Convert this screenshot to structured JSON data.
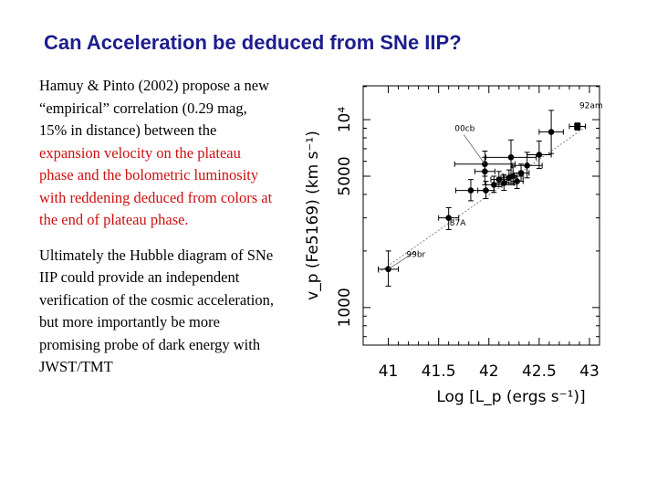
{
  "slide": {
    "title": "Can Acceleration be deduced from SNe IIP?",
    "para1_black": "Hamuy & Pinto (2002) propose a new “empirical” correlation (0.29 mag, 15% in distance) between the",
    "para1_red": "expansion velocity on the plateau phase and the bolometric luminosity with reddening deduced from colors at the end of plateau phase.",
    "para2": "Ultimately the Hubble diagram of SNe IIP could provide an independent verification of the cosmic acceleration, but more importantly be more promising probe of dark energy with JWST/TMT"
  },
  "chart_data": {
    "type": "scatter",
    "title": "",
    "xlabel": "Log [L_p (ergs s⁻¹)]",
    "ylabel": "v_p (Fe5169) (km s⁻¹)",
    "xlim": [
      40.75,
      43.1
    ],
    "ylim_log": [
      2.8,
      4.18
    ],
    "xticks": [
      "41",
      "41.5",
      "42",
      "42.5",
      "43"
    ],
    "yticks": [
      "1000",
      "5000",
      "10⁴"
    ],
    "points": [
      {
        "x": 42.88,
        "y": 9200,
        "xerr": 0.08,
        "yerr_lo": 400,
        "yerr_hi": 400
      },
      {
        "x": 42.62,
        "y": 8600,
        "xerr": 0.12,
        "yerr_lo": 2000,
        "yerr_hi": 2600
      },
      {
        "x": 42.5,
        "y": 6500,
        "xerr": 0.12,
        "yerr_lo": 1000,
        "yerr_hi": 1200
      },
      {
        "x": 42.22,
        "y": 6300,
        "xerr": 0.25,
        "yerr_lo": 1200,
        "yerr_hi": 1500
      },
      {
        "x": 41.96,
        "y": 5800,
        "xerr": 0.3,
        "yerr_lo": 800,
        "yerr_hi": 1000
      },
      {
        "x": 42.38,
        "y": 5700,
        "xerr": 0.15,
        "yerr_lo": 800,
        "yerr_hi": 1000
      },
      {
        "x": 41.96,
        "y": 5300,
        "xerr": 0.1,
        "yerr_lo": 800,
        "yerr_hi": 1000
      },
      {
        "x": 42.32,
        "y": 5200,
        "xerr": 0.08,
        "yerr_lo": 500,
        "yerr_hi": 600
      },
      {
        "x": 42.24,
        "y": 5000,
        "xerr": 0.1,
        "yerr_lo": 500,
        "yerr_hi": 600
      },
      {
        "x": 42.2,
        "y": 4900,
        "xerr": 0.08,
        "yerr_lo": 400,
        "yerr_hi": 500
      },
      {
        "x": 42.1,
        "y": 4800,
        "xerr": 0.08,
        "yerr_lo": 400,
        "yerr_hi": 500
      },
      {
        "x": 42.28,
        "y": 4700,
        "xerr": 0.06,
        "yerr_lo": 400,
        "yerr_hi": 500
      },
      {
        "x": 42.15,
        "y": 4600,
        "xerr": 0.1,
        "yerr_lo": 400,
        "yerr_hi": 500
      },
      {
        "x": 42.05,
        "y": 4500,
        "xerr": 0.08,
        "yerr_lo": 400,
        "yerr_hi": 500
      },
      {
        "x": 41.82,
        "y": 4200,
        "xerr": 0.15,
        "yerr_lo": 500,
        "yerr_hi": 600
      },
      {
        "x": 41.97,
        "y": 4200,
        "xerr": 0.08,
        "yerr_lo": 400,
        "yerr_hi": 500
      },
      {
        "x": 41.6,
        "y": 3000,
        "xerr": 0.1,
        "yerr_lo": 400,
        "yerr_hi": 400
      },
      {
        "x": 41.0,
        "y": 1600,
        "xerr": 0.1,
        "yerr_lo": 300,
        "yerr_hi": 400
      }
    ],
    "fit_line": {
      "x": [
        40.9,
        42.98
      ],
      "y": [
        1530,
        9300
      ]
    },
    "annotations": [
      {
        "text": "92am",
        "x": 42.9,
        "y": 11500,
        "tx": 42.88,
        "ty": 9200,
        "leader": false
      },
      {
        "text": "00cb",
        "x": 41.66,
        "y": 8700,
        "tx": 41.96,
        "ty": 5800,
        "leader": true
      },
      {
        "text": "87A",
        "x": 41.61,
        "y": 2740,
        "tx": 41.6,
        "ty": 3000,
        "leader": false
      },
      {
        "text": "99br",
        "x": 41.18,
        "y": 1860,
        "tx": 41.0,
        "ty": 1600,
        "leader": true
      }
    ]
  }
}
